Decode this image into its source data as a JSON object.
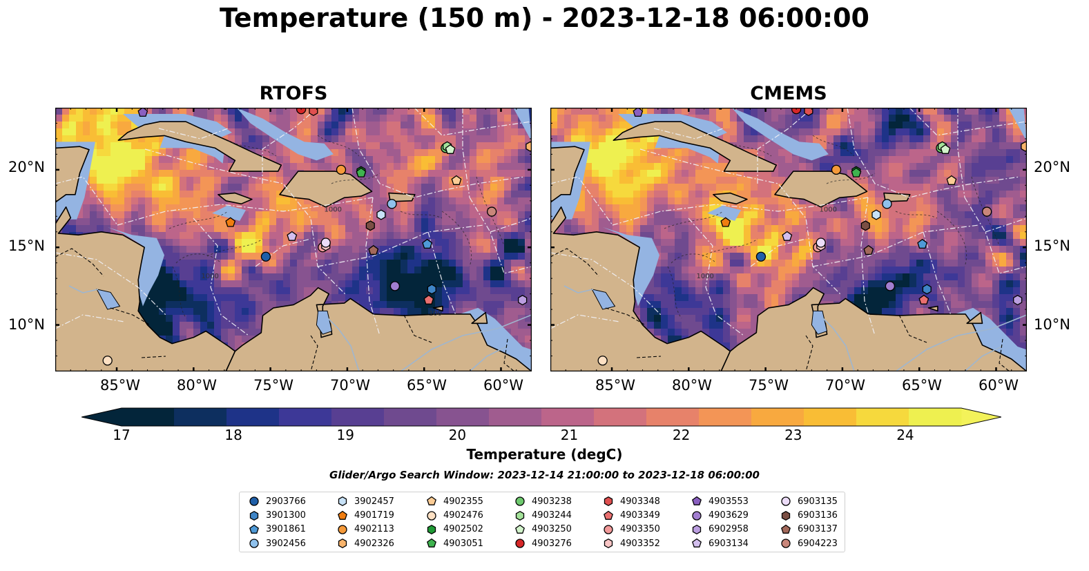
{
  "title": "Temperature (150 m) - 2023-12-18 06:00:00",
  "panels": [
    {
      "title": "RTOFS"
    },
    {
      "title": "CMEMS"
    }
  ],
  "map": {
    "lat_ticks": [
      "20°N",
      "15°N",
      "10°N"
    ],
    "lon_ticks": [
      "85°W",
      "80°W",
      "75°W",
      "70°W",
      "65°W",
      "60°W"
    ],
    "contour_labels": [
      "1000",
      "100"
    ]
  },
  "colorbar": {
    "label": "Temperature (degC)",
    "ticks": [
      "17",
      "18",
      "19",
      "20",
      "21",
      "22",
      "23",
      "24"
    ],
    "colormap": [
      "#03253a",
      "#0d2f5f",
      "#1e3388",
      "#3d3897",
      "#583f92",
      "#6f4a8f",
      "#875390",
      "#a05c8f",
      "#bc658a",
      "#d3727c",
      "#e7826a",
      "#f39556",
      "#f8a93f",
      "#f9bd35",
      "#f6d93d",
      "#eef050"
    ]
  },
  "search_window": "Glider/Argo Search Window: 2023-12-14 21:00:00 to 2023-12-18 06:00:00",
  "legend": [
    {
      "id": "2903766",
      "marker": "circle",
      "color": "#1f5fa8"
    },
    {
      "id": "3901300",
      "marker": "hexagon",
      "color": "#3f85c7"
    },
    {
      "id": "3901861",
      "marker": "pentagon",
      "color": "#4f9ad7"
    },
    {
      "id": "3902456",
      "marker": "circle",
      "color": "#8fc1ec"
    },
    {
      "id": "3902457",
      "marker": "hexagon",
      "color": "#c8e2f7"
    },
    {
      "id": "4901719",
      "marker": "pentagon",
      "color": "#f07d10"
    },
    {
      "id": "4902113",
      "marker": "circle",
      "color": "#f59a3a"
    },
    {
      "id": "4902326",
      "marker": "hexagon",
      "color": "#f8b46c"
    },
    {
      "id": "4902355",
      "marker": "pentagon",
      "color": "#fbcc95"
    },
    {
      "id": "4902476",
      "marker": "circle",
      "color": "#fde0c3"
    },
    {
      "id": "4902502",
      "marker": "hexagon",
      "color": "#1f9a35"
    },
    {
      "id": "4903051",
      "marker": "pentagon",
      "color": "#3fb34f"
    },
    {
      "id": "4903238",
      "marker": "circle",
      "color": "#6ec96e"
    },
    {
      "id": "4903244",
      "marker": "hexagon",
      "color": "#a4e29a"
    },
    {
      "id": "4903250",
      "marker": "pentagon",
      "color": "#d2f3cb"
    },
    {
      "id": "4903276",
      "marker": "circle",
      "color": "#d62728"
    },
    {
      "id": "4903348",
      "marker": "hexagon",
      "color": "#e05050"
    },
    {
      "id": "4903349",
      "marker": "pentagon",
      "color": "#ea7070"
    },
    {
      "id": "4903350",
      "marker": "circle",
      "color": "#f29a9a"
    },
    {
      "id": "4903352",
      "marker": "hexagon",
      "color": "#f9c6c6"
    },
    {
      "id": "4903553",
      "marker": "pentagon",
      "color": "#8a5fc0"
    },
    {
      "id": "4903629",
      "marker": "circle",
      "color": "#a27ed0"
    },
    {
      "id": "6902958",
      "marker": "hexagon",
      "color": "#bb9ee0"
    },
    {
      "id": "6903134",
      "marker": "pentagon",
      "color": "#d3bfee"
    },
    {
      "id": "6903135",
      "marker": "circle",
      "color": "#ecdcf8"
    },
    {
      "id": "6903136",
      "marker": "hexagon",
      "color": "#7b4f44"
    },
    {
      "id": "6903137",
      "marker": "pentagon",
      "color": "#a3695b"
    },
    {
      "id": "6904223",
      "marker": "circle",
      "color": "#c9867a"
    }
  ],
  "chart_data": {
    "type": "heatmap",
    "variable": "Temperature (150 m)",
    "time": "2023-12-18 06:00:00",
    "units": "degC",
    "clim": [
      17,
      24.5
    ],
    "lon_range": [
      -89,
      -58
    ],
    "lat_range": [
      7,
      24
    ],
    "models": [
      "RTOFS",
      "CMEMS"
    ],
    "observations": [
      {
        "id": "2903766",
        "lon": -75.3,
        "lat": 14.4
      },
      {
        "id": "3901300",
        "lon": -64.5,
        "lat": 12.3
      },
      {
        "id": "3901861",
        "lon": -64.8,
        "lat": 15.2
      },
      {
        "id": "3902456",
        "lon": -67.1,
        "lat": 17.8
      },
      {
        "id": "3902457",
        "lon": -67.8,
        "lat": 17.1
      },
      {
        "id": "4901719",
        "lon": -77.6,
        "lat": 16.6
      },
      {
        "id": "4902113",
        "lon": -70.4,
        "lat": 20.0
      },
      {
        "id": "4902326",
        "lon": -58.1,
        "lat": 21.5
      },
      {
        "id": "4902355",
        "lon": -62.9,
        "lat": 19.3
      },
      {
        "id": "4902476",
        "lon": -85.6,
        "lat": 7.7
      },
      {
        "id": "4902502",
        "lon": -69.1,
        "lat": 19.9
      },
      {
        "id": "4903051",
        "lon": -69.1,
        "lat": 19.8
      },
      {
        "id": "4903238",
        "lon": -63.6,
        "lat": 21.4
      },
      {
        "id": "4903244",
        "lon": -63.5,
        "lat": 21.5
      },
      {
        "id": "4903250",
        "lon": -63.3,
        "lat": 21.3
      },
      {
        "id": "4903276",
        "lon": -73.0,
        "lat": 23.9
      },
      {
        "id": "4903348",
        "lon": -72.2,
        "lat": 23.8
      },
      {
        "id": "4903349",
        "lon": -64.7,
        "lat": 11.6
      },
      {
        "id": "4903350",
        "lon": -71.6,
        "lat": 15.0
      },
      {
        "id": "4903352",
        "lon": -71.4,
        "lat": 15.1
      },
      {
        "id": "4903553",
        "lon": -83.3,
        "lat": 23.7
      },
      {
        "id": "4903629",
        "lon": -66.9,
        "lat": 12.5
      },
      {
        "id": "6902958",
        "lon": -58.6,
        "lat": 11.6
      },
      {
        "id": "6903134",
        "lon": -73.6,
        "lat": 15.7
      },
      {
        "id": "6903135",
        "lon": -71.4,
        "lat": 15.3
      },
      {
        "id": "6903136",
        "lon": -68.5,
        "lat": 16.4
      },
      {
        "id": "6903137",
        "lon": -68.3,
        "lat": 14.8
      },
      {
        "id": "6904223",
        "lon": -60.6,
        "lat": 17.3
      }
    ]
  }
}
